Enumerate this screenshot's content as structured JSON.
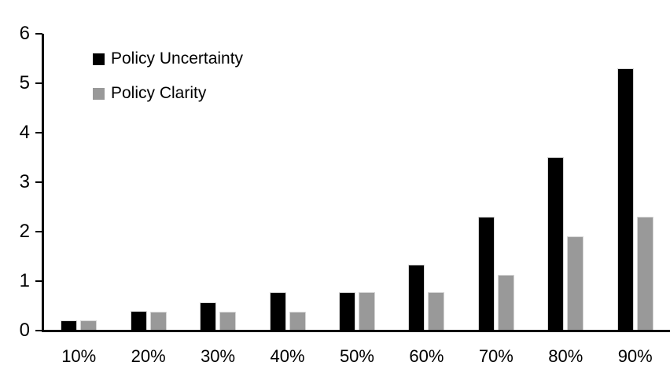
{
  "chart_data": {
    "type": "bar",
    "title": "",
    "xlabel": "",
    "ylabel": "",
    "categories": [
      "10%",
      "20%",
      "30%",
      "40%",
      "50%",
      "60%",
      "70%",
      "80%",
      "90%"
    ],
    "series": [
      {
        "name": "Policy Uncertainty",
        "color": "#000000",
        "values": [
          0.2,
          0.4,
          0.57,
          0.77,
          0.78,
          1.33,
          2.3,
          3.5,
          5.3
        ]
      },
      {
        "name": "Policy Clarity",
        "color": "#999999",
        "values": [
          0.2,
          0.38,
          0.38,
          0.38,
          0.77,
          0.77,
          1.13,
          1.9,
          2.3
        ]
      }
    ],
    "ylim": [
      0,
      6
    ],
    "yticks": [
      "0",
      "1",
      "2",
      "3",
      "4",
      "5",
      "6"
    ],
    "grid": false,
    "legend_position": "top-left-inside",
    "axis_color": "#000000",
    "background_color": "#ffffff",
    "bar_border_color": "#d6d6d6"
  }
}
